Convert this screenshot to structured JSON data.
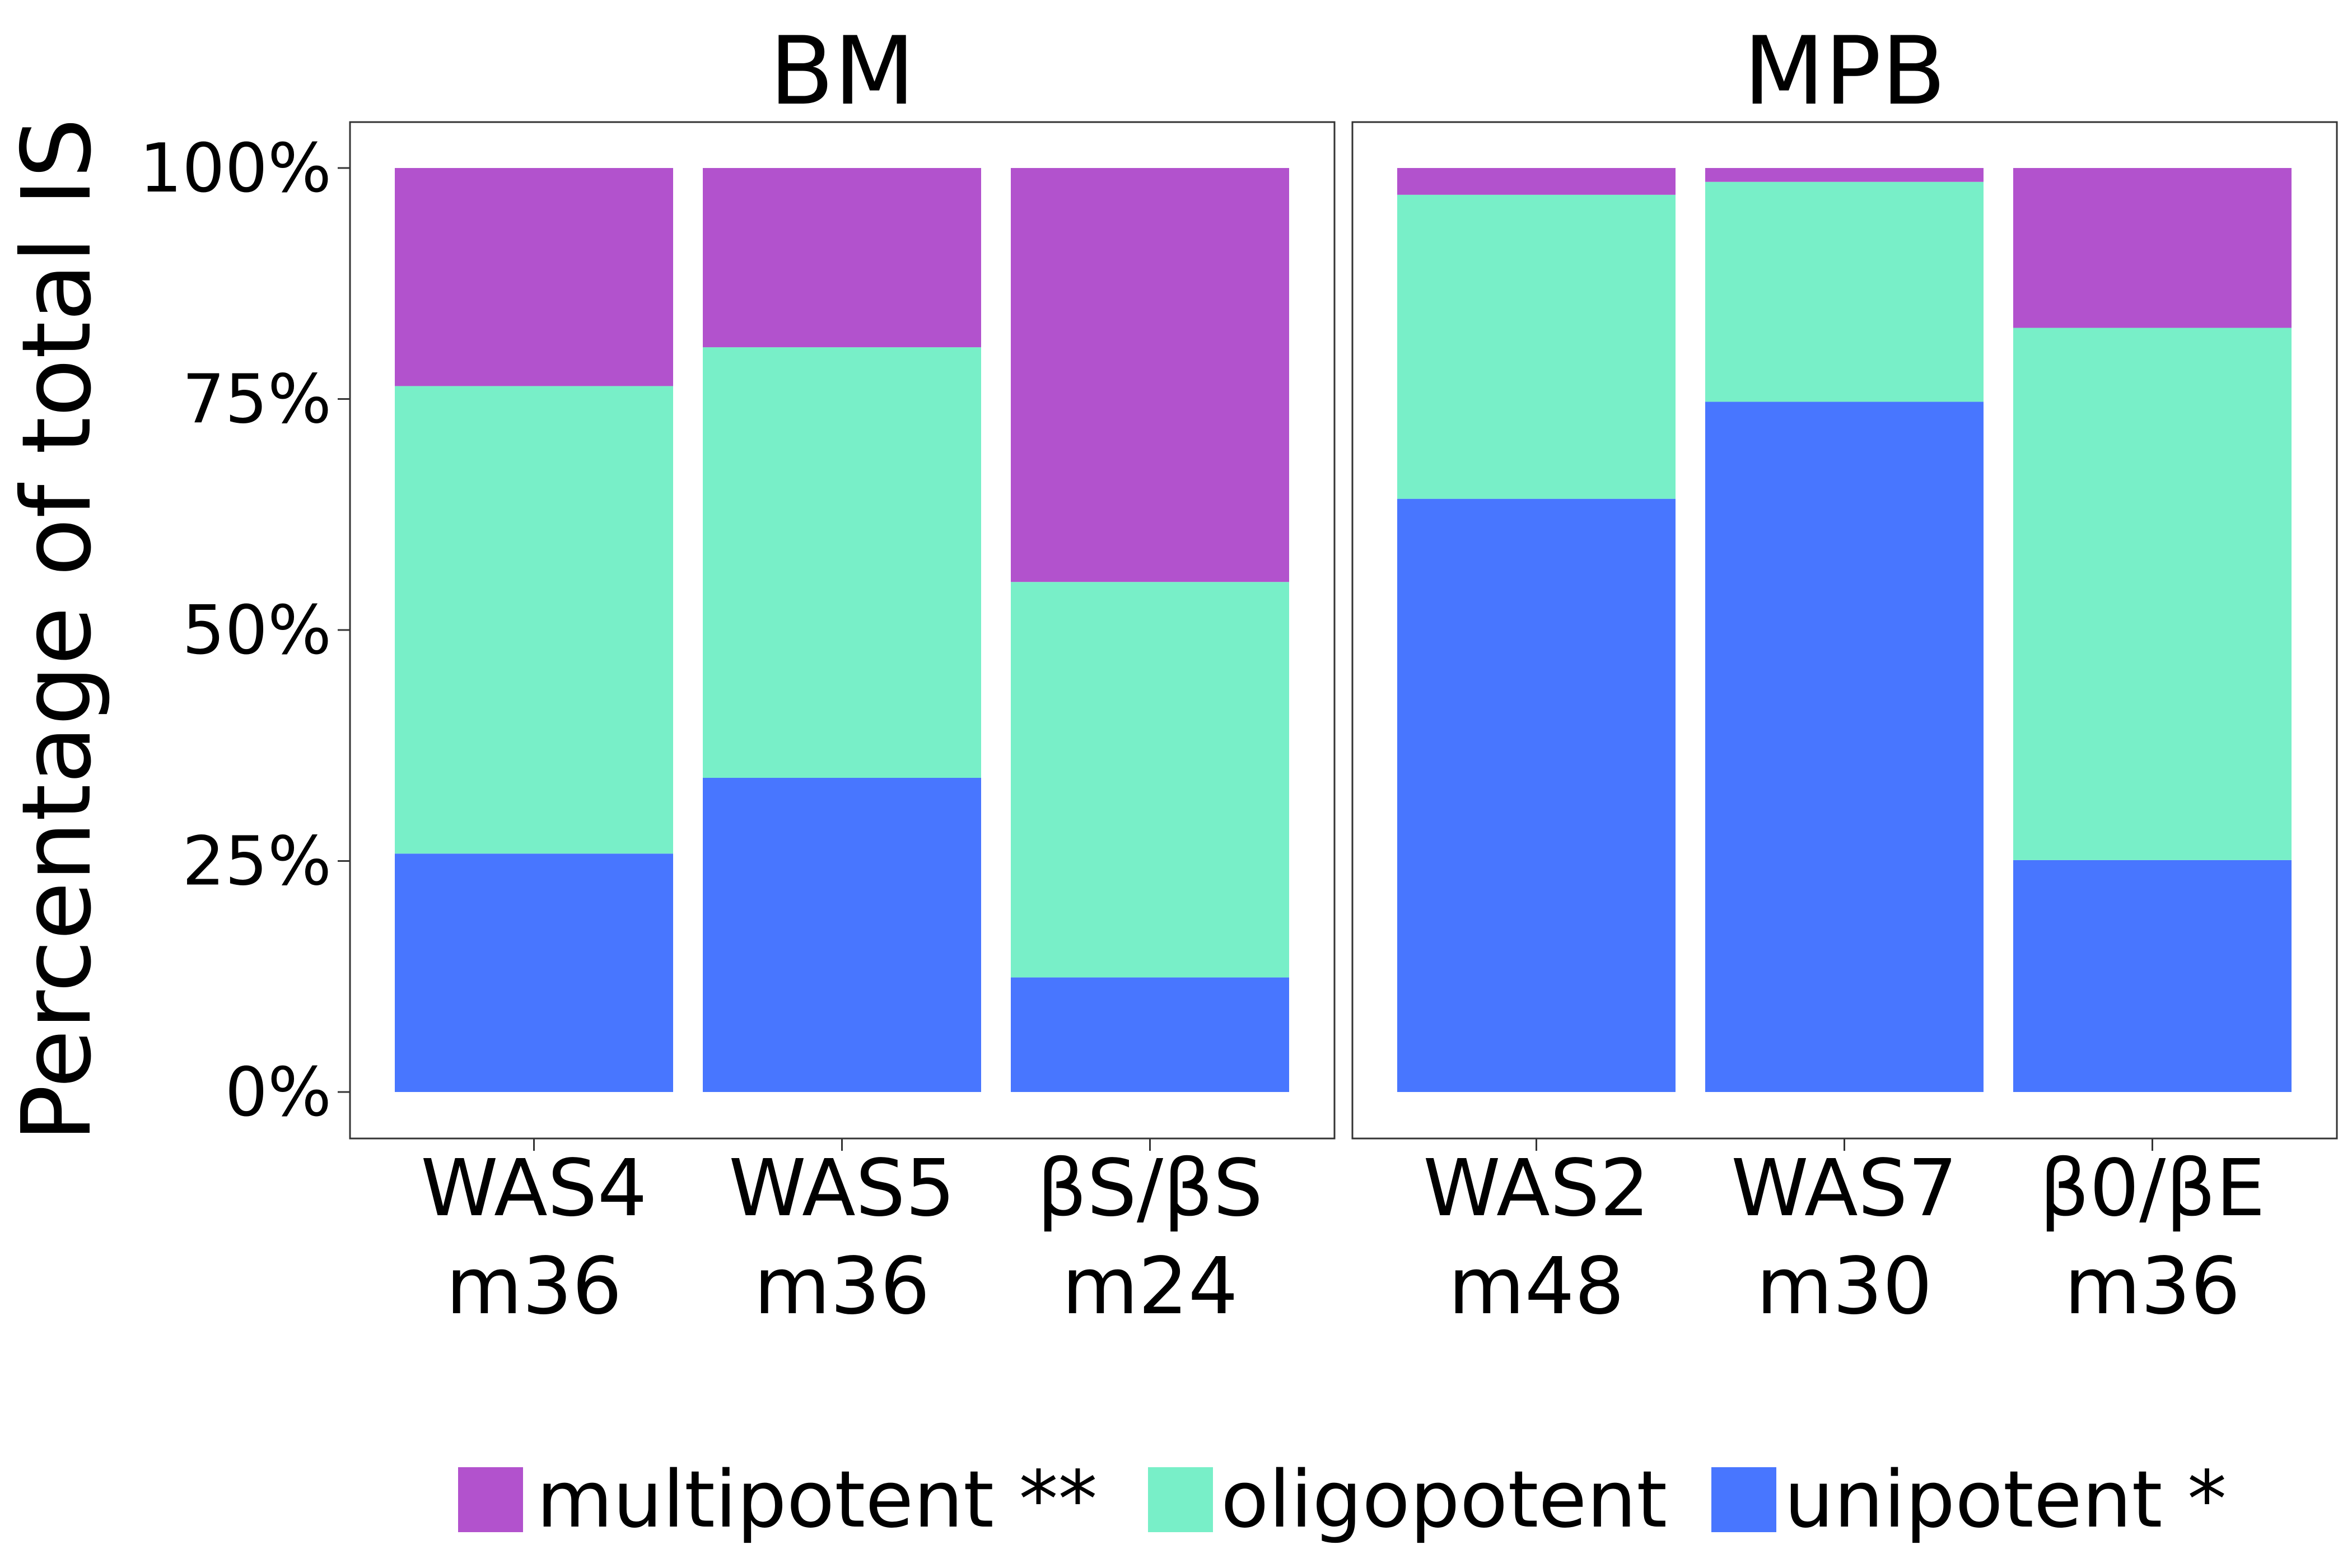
{
  "chart_data": {
    "type": "bar",
    "stacked": true,
    "ylabel": "Percentage of total IS",
    "ylim": [
      0,
      100
    ],
    "yticks": [
      "0%",
      "25%",
      "50%",
      "75%",
      "100%"
    ],
    "yticks_values": [
      0,
      25,
      50,
      75,
      100
    ],
    "legend_position": "bottom",
    "grid": false,
    "series_colors": {
      "multipotent": "#B252CD",
      "oligopotent": "#78EFC8",
      "unipotent": "#4876FF"
    },
    "series": [
      {
        "name": "multipotent **",
        "key": "multipotent"
      },
      {
        "name": "oligopotent",
        "key": "oligopotent"
      },
      {
        "name": "unipotent *",
        "key": "unipotent"
      }
    ],
    "panels": [
      {
        "title": "BM",
        "categories": [
          {
            "line1": "WAS4",
            "line2": "m36"
          },
          {
            "line1": "WAS5",
            "line2": "m36"
          },
          {
            "line1": "βS/βS",
            "line2": "m24"
          }
        ],
        "values": {
          "unipotent": [
            25.8,
            34.0,
            12.4
          ],
          "oligopotent": [
            50.6,
            46.6,
            42.8
          ],
          "multipotent": [
            23.6,
            19.4,
            44.8
          ]
        }
      },
      {
        "title": "MPB",
        "categories": [
          {
            "line1": "WAS2",
            "line2": "m48"
          },
          {
            "line1": "WAS7",
            "line2": "m30"
          },
          {
            "line1": "β0/βE",
            "line2": "m36"
          }
        ],
        "values": {
          "unipotent": [
            64.2,
            74.7,
            25.1
          ],
          "oligopotent": [
            32.9,
            23.8,
            57.6
          ],
          "multipotent": [
            2.9,
            1.5,
            17.3
          ]
        }
      }
    ]
  }
}
